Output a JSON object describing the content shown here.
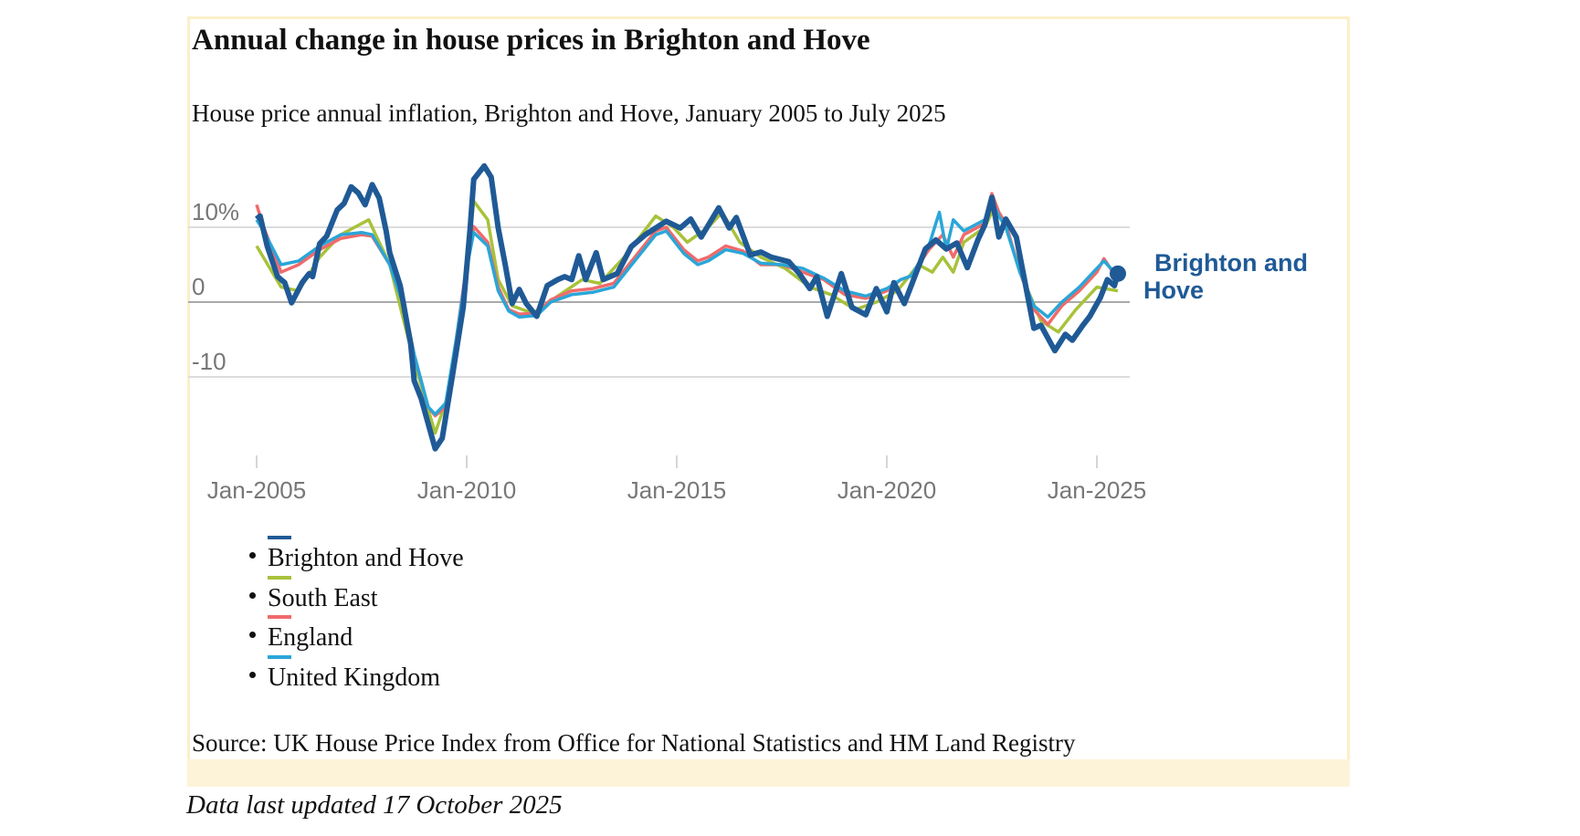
{
  "title": "Annual change in house prices in Brighton and Hove",
  "subtitle": "House price annual inflation, Brighton and Hove, January 2005 to July 2025",
  "source": "Source: UK House Price Index from Office for National Statistics and HM Land Registry",
  "updated": "Data last updated 17 October 2025",
  "series_label_line1": "Brighton and",
  "series_label_line2": "Hove",
  "chart_data": {
    "type": "line",
    "title": "Annual change in house prices in Brighton and Hove",
    "subtitle": "House price annual inflation, Brighton and Hove, January 2005 to July 2025",
    "xlabel": "",
    "ylabel": "",
    "xlim": [
      "2005-01",
      "2025-07"
    ],
    "ylim": [
      -20,
      18
    ],
    "y_ticks": [
      {
        "value": 10,
        "label": "10%"
      },
      {
        "value": 0,
        "label": "0"
      },
      {
        "value": -10,
        "label": "-10"
      }
    ],
    "x_ticks": [
      {
        "value": "2005-01",
        "label": "Jan-2005"
      },
      {
        "value": "2010-01",
        "label": "Jan-2010"
      },
      {
        "value": "2015-01",
        "label": "Jan-2015"
      },
      {
        "value": "2020-01",
        "label": "Jan-2020"
      },
      {
        "value": "2025-01",
        "label": "Jan-2025"
      }
    ],
    "grid": "horizontal",
    "legend_placement": "bottom",
    "series": [
      {
        "name": "South East",
        "color": "#a8c23a",
        "points": [
          [
            "2005-01",
            7.5
          ],
          [
            "2005-08",
            2
          ],
          [
            "2006-01",
            1.5
          ],
          [
            "2006-07",
            6
          ],
          [
            "2007-01",
            9
          ],
          [
            "2007-09",
            11
          ],
          [
            "2008-03",
            5
          ],
          [
            "2008-10",
            -8
          ],
          [
            "2009-04",
            -17.5
          ],
          [
            "2009-08",
            -12
          ],
          [
            "2010-01",
            4
          ],
          [
            "2010-03",
            13.5
          ],
          [
            "2010-07",
            11
          ],
          [
            "2010-10",
            3
          ],
          [
            "2011-02",
            -0.5
          ],
          [
            "2011-08",
            -1.5
          ],
          [
            "2012-03",
            0.8
          ],
          [
            "2012-10",
            3
          ],
          [
            "2013-03",
            2.5
          ],
          [
            "2013-10",
            6
          ],
          [
            "2014-07",
            11.5
          ],
          [
            "2014-12",
            10
          ],
          [
            "2015-04",
            8
          ],
          [
            "2015-10",
            10
          ],
          [
            "2016-02",
            12
          ],
          [
            "2016-07",
            8
          ],
          [
            "2017-01",
            6
          ],
          [
            "2017-08",
            4.5
          ],
          [
            "2018-03",
            2
          ],
          [
            "2018-09",
            1
          ],
          [
            "2019-04",
            -1
          ],
          [
            "2019-10",
            0
          ],
          [
            "2020-04",
            1.5
          ],
          [
            "2020-10",
            5
          ],
          [
            "2021-02",
            4
          ],
          [
            "2021-05",
            6
          ],
          [
            "2021-08",
            4
          ],
          [
            "2021-11",
            8
          ],
          [
            "2022-05",
            10
          ],
          [
            "2022-08",
            13
          ],
          [
            "2022-11",
            10
          ],
          [
            "2023-04",
            3
          ],
          [
            "2023-09",
            -2.5
          ],
          [
            "2024-02",
            -4
          ],
          [
            "2024-07",
            -1
          ],
          [
            "2025-01",
            2
          ],
          [
            "2025-07",
            1.5
          ]
        ]
      },
      {
        "name": "England",
        "color": "#f06a6a",
        "points": [
          [
            "2005-01",
            13
          ],
          [
            "2005-03",
            10
          ],
          [
            "2005-08",
            4
          ],
          [
            "2006-01",
            5
          ],
          [
            "2006-07",
            7
          ],
          [
            "2007-01",
            8.5
          ],
          [
            "2007-07",
            9
          ],
          [
            "2007-10",
            8.8
          ],
          [
            "2008-03",
            5
          ],
          [
            "2008-07",
            0
          ],
          [
            "2008-10",
            -7
          ],
          [
            "2009-02",
            -14
          ],
          [
            "2009-04",
            -15.2
          ],
          [
            "2009-07",
            -14
          ],
          [
            "2009-10",
            -5
          ],
          [
            "2010-01",
            5
          ],
          [
            "2010-03",
            10.1
          ],
          [
            "2010-07",
            8
          ],
          [
            "2010-10",
            2
          ],
          [
            "2011-01",
            -1
          ],
          [
            "2011-04",
            -1.6
          ],
          [
            "2011-09",
            -1.5
          ],
          [
            "2012-01",
            0.3
          ],
          [
            "2012-07",
            1.5
          ],
          [
            "2013-01",
            1.8
          ],
          [
            "2013-07",
            2.5
          ],
          [
            "2014-01",
            6
          ],
          [
            "2014-07",
            9.5
          ],
          [
            "2014-10",
            10
          ],
          [
            "2015-03",
            7
          ],
          [
            "2015-07",
            5.5
          ],
          [
            "2015-10",
            6
          ],
          [
            "2016-03",
            7.5
          ],
          [
            "2016-08",
            6.8
          ],
          [
            "2017-01",
            5
          ],
          [
            "2017-07",
            5
          ],
          [
            "2018-01",
            4
          ],
          [
            "2018-07",
            3
          ],
          [
            "2019-01",
            1
          ],
          [
            "2019-07",
            0.5
          ],
          [
            "2020-01",
            1.5
          ],
          [
            "2020-05",
            3
          ],
          [
            "2020-08",
            3.5
          ],
          [
            "2021-01",
            7
          ],
          [
            "2021-05",
            9
          ],
          [
            "2021-08",
            6
          ],
          [
            "2021-11",
            9
          ],
          [
            "2022-05",
            10.5
          ],
          [
            "2022-07",
            14.5
          ],
          [
            "2022-09",
            12
          ],
          [
            "2022-11",
            10.5
          ],
          [
            "2023-03",
            4
          ],
          [
            "2023-07",
            -1
          ],
          [
            "2023-11",
            -3
          ],
          [
            "2024-03",
            -0.5
          ],
          [
            "2024-08",
            1.5
          ],
          [
            "2025-01",
            4
          ],
          [
            "2025-03",
            5.8
          ],
          [
            "2025-07",
            3
          ]
        ]
      },
      {
        "name": "United Kingdom",
        "color": "#2aa6d8",
        "points": [
          [
            "2005-01",
            11
          ],
          [
            "2005-03",
            9.5
          ],
          [
            "2005-08",
            5
          ],
          [
            "2006-01",
            5.5
          ],
          [
            "2006-07",
            7.5
          ],
          [
            "2007-01",
            9
          ],
          [
            "2007-07",
            9.3
          ],
          [
            "2007-10",
            9
          ],
          [
            "2008-03",
            5
          ],
          [
            "2008-07",
            -0.5
          ],
          [
            "2008-10",
            -7
          ],
          [
            "2009-02",
            -14
          ],
          [
            "2009-04",
            -15
          ],
          [
            "2009-07",
            -13.5
          ],
          [
            "2009-10",
            -5
          ],
          [
            "2010-01",
            4.5
          ],
          [
            "2010-03",
            9.3
          ],
          [
            "2010-07",
            7.5
          ],
          [
            "2010-10",
            1.5
          ],
          [
            "2011-01",
            -1.2
          ],
          [
            "2011-04",
            -2
          ],
          [
            "2011-09",
            -1.8
          ],
          [
            "2012-01",
            0
          ],
          [
            "2012-07",
            1
          ],
          [
            "2013-01",
            1.3
          ],
          [
            "2013-07",
            2
          ],
          [
            "2014-01",
            5.5
          ],
          [
            "2014-07",
            9
          ],
          [
            "2014-10",
            9.5
          ],
          [
            "2015-03",
            6.5
          ],
          [
            "2015-07",
            5
          ],
          [
            "2015-10",
            5.5
          ],
          [
            "2016-03",
            7
          ],
          [
            "2016-08",
            6.5
          ],
          [
            "2017-01",
            5.2
          ],
          [
            "2017-07",
            5
          ],
          [
            "2018-01",
            4.5
          ],
          [
            "2018-07",
            3.2
          ],
          [
            "2019-01",
            1.5
          ],
          [
            "2019-07",
            0.8
          ],
          [
            "2020-01",
            1.8
          ],
          [
            "2020-05",
            3
          ],
          [
            "2020-08",
            3.5
          ],
          [
            "2021-01",
            7.5
          ],
          [
            "2021-04",
            12
          ],
          [
            "2021-06",
            7
          ],
          [
            "2021-08",
            11
          ],
          [
            "2021-11",
            9.5
          ],
          [
            "2022-05",
            11
          ],
          [
            "2022-07",
            13.5
          ],
          [
            "2022-09",
            11.5
          ],
          [
            "2022-11",
            10
          ],
          [
            "2023-03",
            4
          ],
          [
            "2023-07",
            -0.5
          ],
          [
            "2023-11",
            -2
          ],
          [
            "2024-03",
            0
          ],
          [
            "2024-08",
            2
          ],
          [
            "2025-01",
            4.5
          ],
          [
            "2025-03",
            5.5
          ],
          [
            "2025-07",
            3.5
          ]
        ]
      },
      {
        "name": "Brighton and Hove",
        "color": "#1f5a96",
        "points": [
          [
            "2005-01",
            11.1
          ],
          [
            "2005-02",
            11.5
          ],
          [
            "2005-04",
            7.5
          ],
          [
            "2005-07",
            3.4
          ],
          [
            "2005-09",
            2.6
          ],
          [
            "2005-11",
            -0.1
          ],
          [
            "2006-02",
            2.6
          ],
          [
            "2006-04",
            3.8
          ],
          [
            "2006-05",
            3.4
          ],
          [
            "2006-07",
            7.8
          ],
          [
            "2006-09",
            8.8
          ],
          [
            "2006-12",
            12.3
          ],
          [
            "2007-02",
            13.2
          ],
          [
            "2007-04",
            15.4
          ],
          [
            "2007-06",
            14.6
          ],
          [
            "2007-08",
            13
          ],
          [
            "2007-10",
            15.7
          ],
          [
            "2007-12",
            13.9
          ],
          [
            "2008-02",
            9.5
          ],
          [
            "2008-03",
            6.6
          ],
          [
            "2008-06",
            2.2
          ],
          [
            "2008-09",
            -5.6
          ],
          [
            "2008-10",
            -10.5
          ],
          [
            "2008-12",
            -12.9
          ],
          [
            "2009-04",
            -19.6
          ],
          [
            "2009-06",
            -18.2
          ],
          [
            "2009-09",
            -9.6
          ],
          [
            "2009-12",
            -0.7
          ],
          [
            "2010-02",
            9.9
          ],
          [
            "2010-03",
            16.4
          ],
          [
            "2010-06",
            18.2
          ],
          [
            "2010-08",
            16.7
          ],
          [
            "2010-10",
            9.9
          ],
          [
            "2010-12",
            5
          ],
          [
            "2011-02",
            -0.2
          ],
          [
            "2011-04",
            1.7
          ],
          [
            "2011-06",
            -0.2
          ],
          [
            "2011-09",
            -1.9
          ],
          [
            "2011-12",
            2.2
          ],
          [
            "2012-03",
            3
          ],
          [
            "2012-05",
            3.4
          ],
          [
            "2012-07",
            3
          ],
          [
            "2012-09",
            6.2
          ],
          [
            "2012-11",
            3
          ],
          [
            "2013-02",
            6.6
          ],
          [
            "2013-04",
            3
          ],
          [
            "2013-08",
            3.8
          ],
          [
            "2013-12",
            7.4
          ],
          [
            "2014-04",
            9
          ],
          [
            "2014-10",
            10.8
          ],
          [
            "2015-02",
            9.9
          ],
          [
            "2015-05",
            11.1
          ],
          [
            "2015-08",
            8.7
          ],
          [
            "2016-01",
            12.6
          ],
          [
            "2016-04",
            9.9
          ],
          [
            "2016-06",
            11.3
          ],
          [
            "2016-10",
            6.3
          ],
          [
            "2017-01",
            6.7
          ],
          [
            "2017-04",
            6
          ],
          [
            "2017-09",
            5.4
          ],
          [
            "2017-12",
            3.8
          ],
          [
            "2018-03",
            1.8
          ],
          [
            "2018-05",
            3.4
          ],
          [
            "2018-08",
            -1.9
          ],
          [
            "2018-12",
            3.8
          ],
          [
            "2019-03",
            -0.7
          ],
          [
            "2019-07",
            -1.7
          ],
          [
            "2019-10",
            1.8
          ],
          [
            "2020-01",
            -1.3
          ],
          [
            "2020-03",
            2.6
          ],
          [
            "2020-06",
            -0.2
          ],
          [
            "2020-12",
            7.1
          ],
          [
            "2021-03",
            8.3
          ],
          [
            "2021-06",
            7.1
          ],
          [
            "2021-09",
            7.9
          ],
          [
            "2021-12",
            4.6
          ],
          [
            "2022-03",
            8.3
          ],
          [
            "2022-05",
            10.3
          ],
          [
            "2022-07",
            14
          ],
          [
            "2022-09",
            8.7
          ],
          [
            "2022-11",
            11.1
          ],
          [
            "2023-02",
            8.7
          ],
          [
            "2023-04",
            3.8
          ],
          [
            "2023-07",
            -3.5
          ],
          [
            "2023-09",
            -3.1
          ],
          [
            "2024-01",
            -6.5
          ],
          [
            "2024-04",
            -4.3
          ],
          [
            "2024-06",
            -5.1
          ],
          [
            "2024-09",
            -3.1
          ],
          [
            "2024-11",
            -1.9
          ],
          [
            "2025-02",
            0.6
          ],
          [
            "2025-04",
            3
          ],
          [
            "2025-06",
            2.2
          ],
          [
            "2025-07",
            3.8
          ]
        ]
      }
    ],
    "legend": [
      {
        "label": "Brighton and Hove",
        "color": "#1f5a96"
      },
      {
        "label": "South East",
        "color": "#a8c23a"
      },
      {
        "label": "England",
        "color": "#f06a6a"
      },
      {
        "label": "United Kingdom",
        "color": "#2aa6d8"
      }
    ]
  }
}
